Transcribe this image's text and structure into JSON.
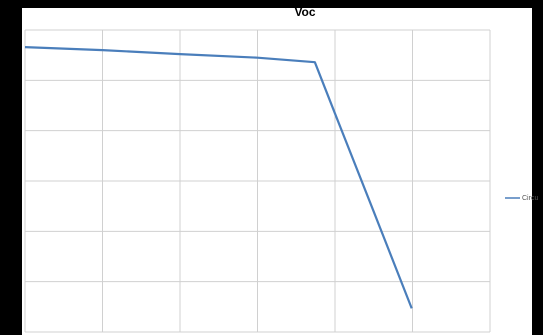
{
  "chart_data": {
    "type": "line",
    "title": "Voc",
    "x": [
      0,
      1,
      2,
      3,
      3.74,
      4,
      4.5,
      4.99
    ],
    "series": [
      {
        "name": "Circu",
        "color": "#4a7ebb",
        "values": [
          5.66,
          5.6,
          5.52,
          5.45,
          5.36,
          4.34,
          2.39,
          0.47
        ]
      }
    ],
    "xlim": [
      0,
      6
    ],
    "xticks": [
      0,
      1,
      2,
      3,
      4,
      5,
      6
    ],
    "ylim": [
      0,
      6
    ],
    "yticks": [
      0,
      1,
      2,
      3,
      4,
      5,
      6
    ],
    "grid": true,
    "legend": "right"
  }
}
